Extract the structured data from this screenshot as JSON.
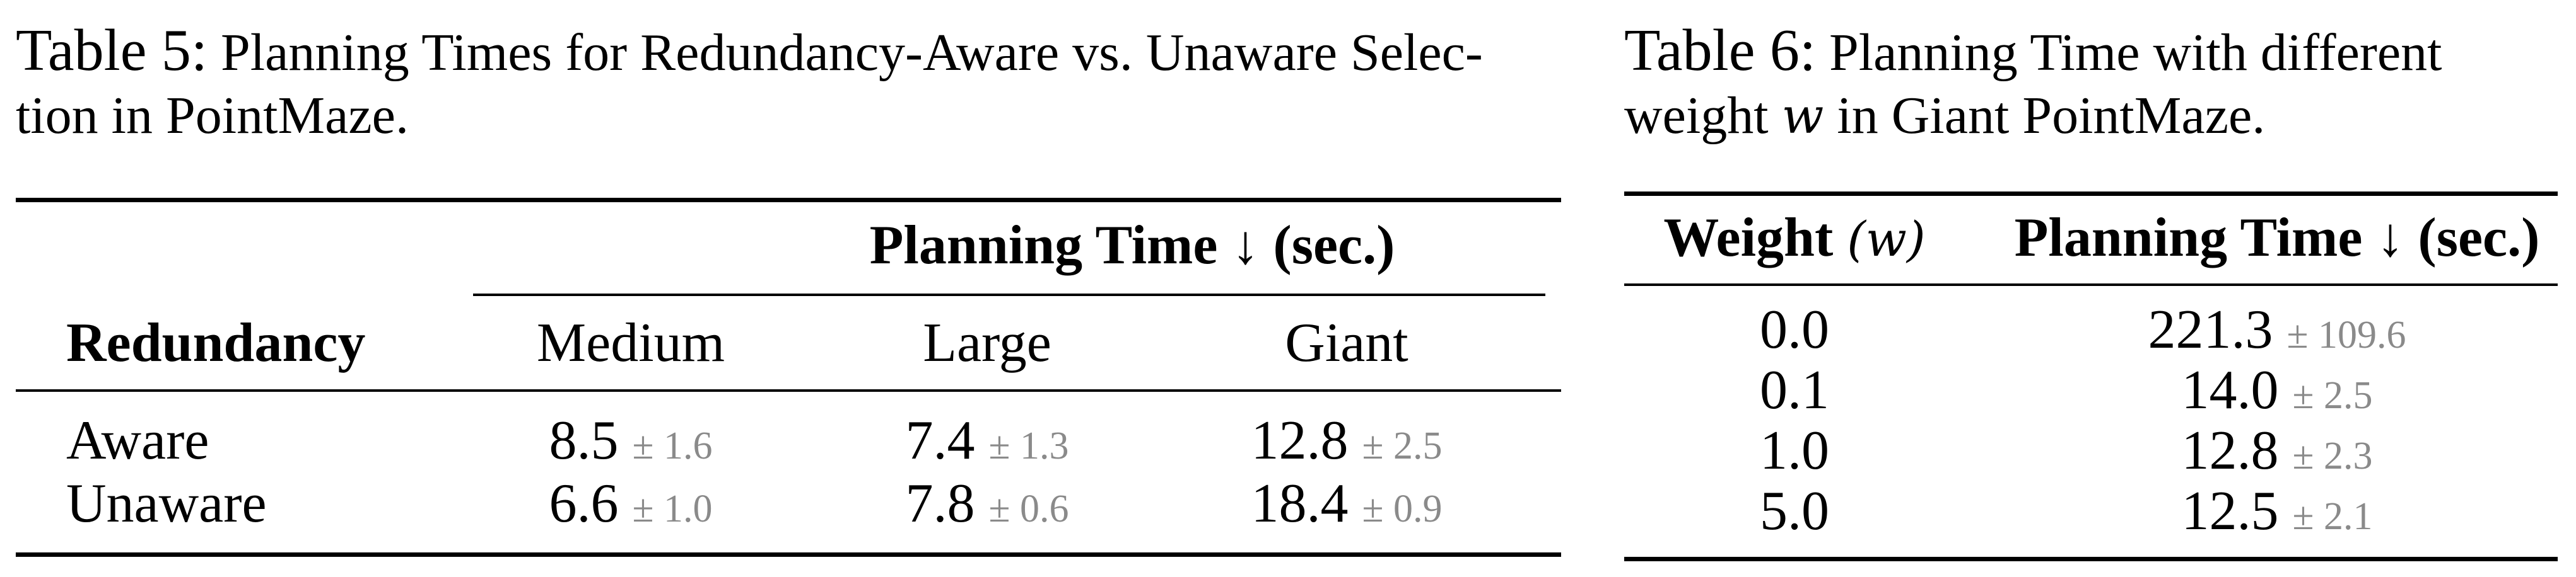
{
  "table5": {
    "caption_label": "Table 5:",
    "caption_line1": "Planning Times for Redundancy-Aware vs. Unaware Selec-",
    "caption_line2": "tion in PointMaze.",
    "header": {
      "row_label": "Redundancy",
      "group_title": "Planning Time ↓ (sec.)",
      "columns": [
        "Medium",
        "Large",
        "Giant"
      ]
    },
    "rows": [
      {
        "label": "Aware",
        "cells": [
          {
            "mean": "8.5",
            "std": "± 1.6"
          },
          {
            "mean": "7.4",
            "std": "± 1.3"
          },
          {
            "mean": "12.8",
            "std": "± 2.5"
          }
        ]
      },
      {
        "label": "Unaware",
        "cells": [
          {
            "mean": "6.6",
            "std": "± 1.0"
          },
          {
            "mean": "7.8",
            "std": "± 0.6"
          },
          {
            "mean": "18.4",
            "std": "± 0.9"
          }
        ]
      }
    ]
  },
  "table6": {
    "caption_label": "Table 6:",
    "caption_line1": "Planning Time with different",
    "caption_line2_pre": "weight",
    "caption_var": "w",
    "caption_line2_post": "in Giant PointMaze.",
    "header": {
      "col1_text": "Weight",
      "col1_var": "(w)",
      "col2": "Planning Time ↓ (sec.)"
    },
    "rows": [
      {
        "weight": "0.0",
        "mean": "221.3",
        "std": "± 109.6"
      },
      {
        "weight": "0.1",
        "mean": "14.0",
        "std": "± 2.5"
      },
      {
        "weight": "1.0",
        "mean": "12.8",
        "std": "± 2.3"
      },
      {
        "weight": "5.0",
        "mean": "12.5",
        "std": "± 2.1"
      }
    ]
  }
}
